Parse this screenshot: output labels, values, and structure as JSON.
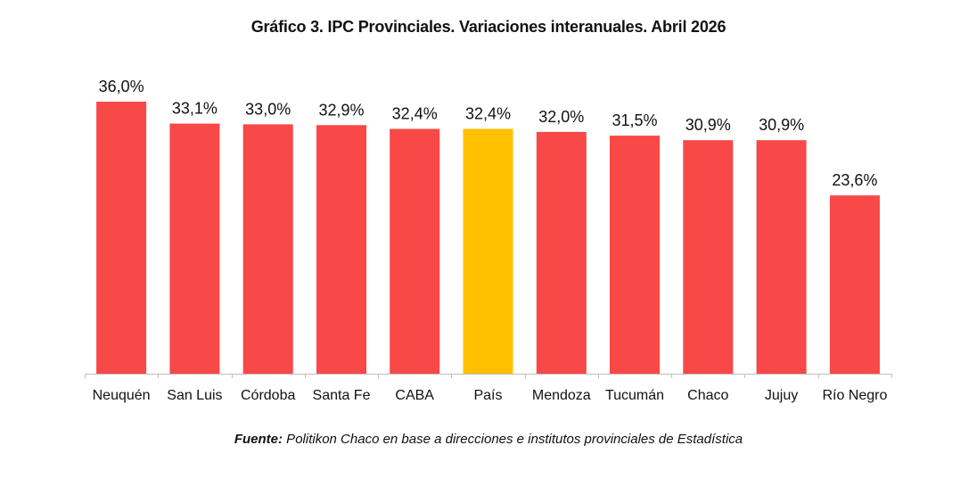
{
  "chart_data": {
    "type": "bar",
    "title": "Gráfico 3. IPC Provinciales. Variaciones interanuales. Abril 2026",
    "categories": [
      "Neuquén",
      "San Luis",
      "Córdoba",
      "Santa Fe",
      "CABA",
      "País",
      "Mendoza",
      "Tucumán",
      "Chaco",
      "Jujuy",
      "Río Negro"
    ],
    "values": [
      36.0,
      33.1,
      33.0,
      32.9,
      32.4,
      32.4,
      32.0,
      31.5,
      30.9,
      30.9,
      23.6
    ],
    "data_labels": [
      "36,0%",
      "33,1%",
      "33,0%",
      "32,9%",
      "32,4%",
      "32,4%",
      "32,0%",
      "31,5%",
      "30,9%",
      "30,9%",
      "23,6%"
    ],
    "ylim": [
      0,
      36.0
    ],
    "grid": false,
    "legend": "none",
    "colors": {
      "default_bar": "#F84848",
      "highlight_bar": "#FFC000",
      "axis": "#BFBFBF",
      "text": "#111111"
    },
    "highlight_category": "País"
  },
  "source": {
    "label": "Fuente:",
    "text": " Politikon Chaco en base a direcciones e institutos provinciales de Estadística"
  }
}
